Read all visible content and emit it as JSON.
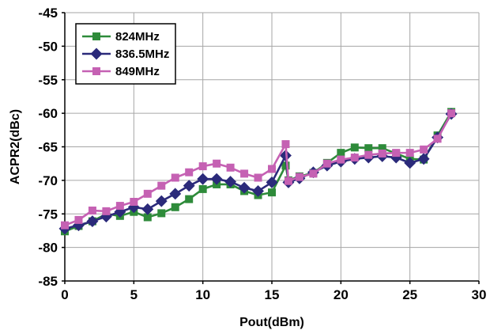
{
  "chart_data": {
    "type": "line",
    "xlabel": "Pout(dBm)",
    "ylabel": "ACPR2(dBc)",
    "xlim": [
      0,
      30
    ],
    "ylim": [
      -85,
      -45
    ],
    "xticks": [
      "0",
      "5",
      "10",
      "15",
      "20",
      "25",
      "30"
    ],
    "yticks": [
      "-45",
      "-50",
      "-55",
      "-60",
      "-65",
      "-70",
      "-75",
      "-80",
      "-85"
    ],
    "grid": true,
    "legend_position": "top-left",
    "series": [
      {
        "name": "824MHz",
        "color": "#2e8b3a",
        "marker": "square",
        "points": [
          [
            0,
            -77.6
          ],
          [
            1,
            -76.8
          ],
          [
            2,
            -76.1
          ],
          [
            3,
            -75.0
          ],
          [
            4,
            -75.3
          ],
          [
            5,
            -74.7
          ],
          [
            6,
            -75.5
          ],
          [
            7,
            -74.9
          ],
          [
            8,
            -74.0
          ],
          [
            9,
            -72.8
          ],
          [
            10,
            -71.3
          ],
          [
            11,
            -70.6
          ],
          [
            12,
            -70.6
          ],
          [
            13,
            -71.6
          ],
          [
            14,
            -72.2
          ],
          [
            15,
            -71.8
          ],
          [
            16,
            -67.8
          ],
          [
            16.2,
            -70.0
          ],
          [
            17,
            -69.4
          ],
          [
            18,
            -68.9
          ],
          [
            19,
            -67.4
          ],
          [
            20,
            -65.9
          ],
          [
            21,
            -65.1
          ],
          [
            22,
            -65.2
          ],
          [
            23,
            -65.2
          ],
          [
            24,
            -66.0
          ],
          [
            25,
            -66.8
          ],
          [
            26,
            -66.9
          ],
          [
            27,
            -63.3
          ],
          [
            28,
            -59.8
          ]
        ]
      },
      {
        "name": "836.5MHz",
        "color": "#2b2a7a",
        "marker": "diamond",
        "points": [
          [
            0,
            -77.2
          ],
          [
            1,
            -76.7
          ],
          [
            2,
            -76.1
          ],
          [
            3,
            -75.4
          ],
          [
            4,
            -74.7
          ],
          [
            5,
            -74.0
          ],
          [
            6,
            -74.3
          ],
          [
            7,
            -73.1
          ],
          [
            8,
            -72.0
          ],
          [
            9,
            -70.8
          ],
          [
            10,
            -69.8
          ],
          [
            11,
            -69.8
          ],
          [
            12,
            -70.2
          ],
          [
            13,
            -71.1
          ],
          [
            14,
            -71.6
          ],
          [
            15,
            -70.3
          ],
          [
            16,
            -66.3
          ],
          [
            16.2,
            -70.3
          ],
          [
            17,
            -69.7
          ],
          [
            18,
            -68.8
          ],
          [
            19,
            -67.8
          ],
          [
            20,
            -67.2
          ],
          [
            21,
            -66.8
          ],
          [
            22,
            -66.6
          ],
          [
            23,
            -66.4
          ],
          [
            24,
            -66.6
          ],
          [
            25,
            -67.4
          ],
          [
            26,
            -66.8
          ],
          [
            27,
            -63.6
          ],
          [
            28,
            -60.1
          ]
        ]
      },
      {
        "name": "849MHz",
        "color": "#c561b3",
        "marker": "square",
        "points": [
          [
            0,
            -76.7
          ],
          [
            1,
            -75.9
          ],
          [
            2,
            -74.5
          ],
          [
            3,
            -74.6
          ],
          [
            4,
            -73.8
          ],
          [
            5,
            -73.2
          ],
          [
            6,
            -72.0
          ],
          [
            7,
            -70.8
          ],
          [
            8,
            -69.6
          ],
          [
            9,
            -68.8
          ],
          [
            10,
            -67.9
          ],
          [
            11,
            -67.5
          ],
          [
            12,
            -68.1
          ],
          [
            13,
            -69.0
          ],
          [
            14,
            -69.6
          ],
          [
            15,
            -68.3
          ],
          [
            16,
            -64.6
          ],
          [
            16.2,
            -70.1
          ],
          [
            17,
            -69.5
          ],
          [
            18,
            -69.0
          ],
          [
            19,
            -67.5
          ],
          [
            20,
            -66.9
          ],
          [
            21,
            -66.6
          ],
          [
            22,
            -66.2
          ],
          [
            23,
            -66.0
          ],
          [
            24,
            -65.9
          ],
          [
            25,
            -65.9
          ],
          [
            26,
            -65.4
          ],
          [
            27,
            -63.8
          ],
          [
            28,
            -60.0
          ]
        ]
      }
    ]
  }
}
